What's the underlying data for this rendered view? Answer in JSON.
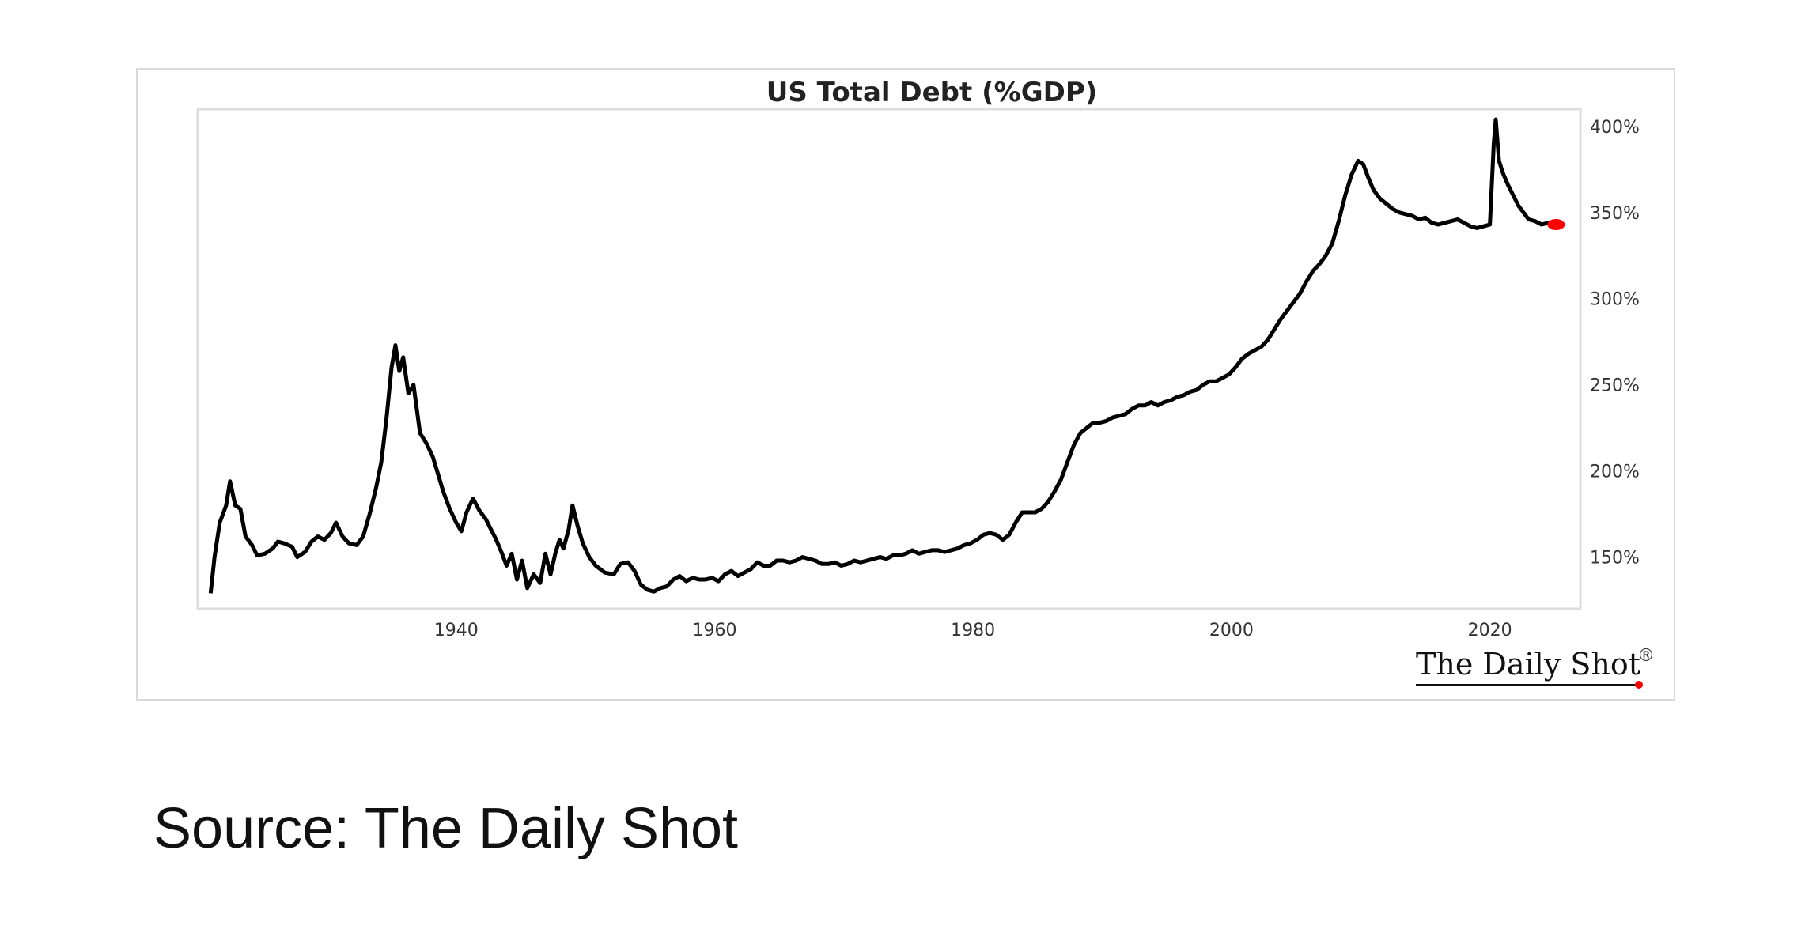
{
  "source": "Source: The Daily Shot",
  "brand": "The Daily Shot",
  "brand_mark": "®",
  "colors": {
    "line": "#000000",
    "latest_marker": "#ff0000",
    "frame": "#d9d9d9",
    "plot_border": "#dddddd"
  },
  "chart_data": {
    "type": "line",
    "title": "US Total Debt (%GDP)",
    "xlabel": "",
    "ylabel": "",
    "xlim": [
      1920,
      2027
    ],
    "ylim": [
      120,
      410
    ],
    "x_ticks": [
      1940,
      1960,
      1980,
      2000,
      2020
    ],
    "y_ticks": [
      {
        "value": 150,
        "label": "150%"
      },
      {
        "value": 200,
        "label": "200%"
      },
      {
        "value": 250,
        "label": "250%"
      },
      {
        "value": 300,
        "label": "300%"
      },
      {
        "value": 350,
        "label": "350%"
      },
      {
        "value": 400,
        "label": "400%"
      }
    ],
    "y_axis_side": "right",
    "grid": false,
    "legend": "none",
    "series": [
      {
        "values": [
          [
            1921.0,
            129
          ],
          [
            1921.3,
            150
          ],
          [
            1921.7,
            170
          ],
          [
            1922.2,
            180
          ],
          [
            1922.5,
            194
          ],
          [
            1922.9,
            180
          ],
          [
            1923.3,
            178
          ],
          [
            1923.7,
            162
          ],
          [
            1924.2,
            157
          ],
          [
            1924.6,
            151
          ],
          [
            1925.2,
            152
          ],
          [
            1925.8,
            155
          ],
          [
            1926.2,
            159
          ],
          [
            1926.7,
            158
          ],
          [
            1927.3,
            156
          ],
          [
            1927.7,
            150
          ],
          [
            1928.3,
            153
          ],
          [
            1928.8,
            159
          ],
          [
            1929.3,
            162
          ],
          [
            1929.8,
            160
          ],
          [
            1930.3,
            164
          ],
          [
            1930.7,
            170
          ],
          [
            1931.2,
            162
          ],
          [
            1931.7,
            158
          ],
          [
            1932.3,
            157
          ],
          [
            1932.8,
            162
          ],
          [
            1933.3,
            175
          ],
          [
            1933.8,
            190
          ],
          [
            1934.2,
            205
          ],
          [
            1934.6,
            230
          ],
          [
            1935.0,
            260
          ],
          [
            1935.3,
            273
          ],
          [
            1935.6,
            258
          ],
          [
            1935.9,
            266
          ],
          [
            1936.3,
            245
          ],
          [
            1936.7,
            250
          ],
          [
            1937.2,
            222
          ],
          [
            1937.7,
            216
          ],
          [
            1938.2,
            208
          ],
          [
            1938.6,
            198
          ],
          [
            1939.0,
            188
          ],
          [
            1939.5,
            178
          ],
          [
            1940.0,
            170
          ],
          [
            1940.4,
            165
          ],
          [
            1940.8,
            176
          ],
          [
            1941.3,
            184
          ],
          [
            1941.8,
            177
          ],
          [
            1942.3,
            172
          ],
          [
            1942.7,
            166
          ],
          [
            1943.1,
            160
          ],
          [
            1943.5,
            153
          ],
          [
            1943.9,
            145
          ],
          [
            1944.3,
            152
          ],
          [
            1944.7,
            137
          ],
          [
            1945.1,
            148
          ],
          [
            1945.5,
            132
          ],
          [
            1946.0,
            140
          ],
          [
            1946.5,
            135
          ],
          [
            1946.9,
            152
          ],
          [
            1947.3,
            140
          ],
          [
            1947.7,
            153
          ],
          [
            1948.0,
            160
          ],
          [
            1948.3,
            155
          ],
          [
            1948.7,
            166
          ],
          [
            1949.0,
            180
          ],
          [
            1949.4,
            168
          ],
          [
            1949.8,
            158
          ],
          [
            1950.3,
            150
          ],
          [
            1950.8,
            145
          ],
          [
            1951.5,
            141
          ],
          [
            1952.2,
            140
          ],
          [
            1952.7,
            146
          ],
          [
            1953.3,
            147
          ],
          [
            1953.8,
            142
          ],
          [
            1954.3,
            134
          ],
          [
            1954.8,
            131
          ],
          [
            1955.3,
            130
          ],
          [
            1955.8,
            132
          ],
          [
            1956.3,
            133
          ],
          [
            1956.8,
            137
          ],
          [
            1957.3,
            139
          ],
          [
            1957.8,
            136
          ],
          [
            1958.3,
            138
          ],
          [
            1958.8,
            137
          ],
          [
            1959.3,
            137
          ],
          [
            1959.8,
            138
          ],
          [
            1960.3,
            136
          ],
          [
            1960.8,
            140
          ],
          [
            1961.3,
            142
          ],
          [
            1961.8,
            139
          ],
          [
            1962.3,
            141
          ],
          [
            1962.8,
            143
          ],
          [
            1963.3,
            147
          ],
          [
            1963.8,
            145
          ],
          [
            1964.3,
            145
          ],
          [
            1964.8,
            148
          ],
          [
            1965.3,
            148
          ],
          [
            1965.8,
            147
          ],
          [
            1966.3,
            148
          ],
          [
            1966.8,
            150
          ],
          [
            1967.3,
            149
          ],
          [
            1967.8,
            148
          ],
          [
            1968.3,
            146
          ],
          [
            1968.8,
            146
          ],
          [
            1969.3,
            147
          ],
          [
            1969.8,
            145
          ],
          [
            1970.3,
            146
          ],
          [
            1970.8,
            148
          ],
          [
            1971.3,
            147
          ],
          [
            1971.8,
            148
          ],
          [
            1972.3,
            149
          ],
          [
            1972.8,
            150
          ],
          [
            1973.3,
            149
          ],
          [
            1973.8,
            151
          ],
          [
            1974.3,
            151
          ],
          [
            1974.8,
            152
          ],
          [
            1975.3,
            154
          ],
          [
            1975.8,
            152
          ],
          [
            1976.3,
            153
          ],
          [
            1976.8,
            154
          ],
          [
            1977.3,
            154
          ],
          [
            1977.8,
            153
          ],
          [
            1978.3,
            154
          ],
          [
            1978.8,
            155
          ],
          [
            1979.3,
            157
          ],
          [
            1979.8,
            158
          ],
          [
            1980.3,
            160
          ],
          [
            1980.8,
            163
          ],
          [
            1981.3,
            164
          ],
          [
            1981.8,
            163
          ],
          [
            1982.3,
            160
          ],
          [
            1982.8,
            163
          ],
          [
            1983.3,
            170
          ],
          [
            1983.8,
            176
          ],
          [
            1984.3,
            176
          ],
          [
            1984.8,
            176
          ],
          [
            1985.3,
            178
          ],
          [
            1985.8,
            182
          ],
          [
            1986.3,
            188
          ],
          [
            1986.8,
            195
          ],
          [
            1987.3,
            205
          ],
          [
            1987.8,
            215
          ],
          [
            1988.3,
            222
          ],
          [
            1988.8,
            225
          ],
          [
            1989.3,
            228
          ],
          [
            1989.8,
            228
          ],
          [
            1990.3,
            229
          ],
          [
            1990.8,
            231
          ],
          [
            1991.3,
            232
          ],
          [
            1991.8,
            233
          ],
          [
            1992.3,
            236
          ],
          [
            1992.8,
            238
          ],
          [
            1993.3,
            238
          ],
          [
            1993.8,
            240
          ],
          [
            1994.3,
            238
          ],
          [
            1994.8,
            240
          ],
          [
            1995.3,
            241
          ],
          [
            1995.8,
            243
          ],
          [
            1996.3,
            244
          ],
          [
            1996.8,
            246
          ],
          [
            1997.3,
            247
          ],
          [
            1997.8,
            250
          ],
          [
            1998.3,
            252
          ],
          [
            1998.8,
            252
          ],
          [
            1999.3,
            254
          ],
          [
            1999.8,
            256
          ],
          [
            2000.3,
            260
          ],
          [
            2000.8,
            265
          ],
          [
            2001.3,
            268
          ],
          [
            2001.8,
            270
          ],
          [
            2002.3,
            272
          ],
          [
            2002.8,
            276
          ],
          [
            2003.3,
            282
          ],
          [
            2003.8,
            288
          ],
          [
            2004.3,
            293
          ],
          [
            2004.8,
            298
          ],
          [
            2005.3,
            303
          ],
          [
            2005.8,
            310
          ],
          [
            2006.3,
            316
          ],
          [
            2006.8,
            320
          ],
          [
            2007.3,
            325
          ],
          [
            2007.8,
            332
          ],
          [
            2008.3,
            345
          ],
          [
            2008.8,
            360
          ],
          [
            2009.3,
            372
          ],
          [
            2009.8,
            380
          ],
          [
            2010.2,
            378
          ],
          [
            2010.6,
            370
          ],
          [
            2011.0,
            363
          ],
          [
            2011.5,
            358
          ],
          [
            2012.0,
            355
          ],
          [
            2012.5,
            352
          ],
          [
            2013.0,
            350
          ],
          [
            2013.5,
            349
          ],
          [
            2014.0,
            348
          ],
          [
            2014.5,
            346
          ],
          [
            2015.0,
            347
          ],
          [
            2015.5,
            344
          ],
          [
            2016.0,
            343
          ],
          [
            2016.5,
            344
          ],
          [
            2017.0,
            345
          ],
          [
            2017.5,
            346
          ],
          [
            2018.0,
            344
          ],
          [
            2018.5,
            342
          ],
          [
            2019.0,
            341
          ],
          [
            2019.5,
            342
          ],
          [
            2020.0,
            343
          ],
          [
            2020.3,
            390
          ],
          [
            2020.45,
            404
          ],
          [
            2020.7,
            380
          ],
          [
            2021.0,
            373
          ],
          [
            2021.4,
            366
          ],
          [
            2021.8,
            360
          ],
          [
            2022.2,
            354
          ],
          [
            2022.6,
            350
          ],
          [
            2023.0,
            346
          ],
          [
            2023.5,
            345
          ],
          [
            2024.0,
            343
          ],
          [
            2024.5,
            344
          ],
          [
            2025.0,
            343
          ]
        ]
      }
    ],
    "latest_point": [
      2025.0,
      343
    ]
  }
}
